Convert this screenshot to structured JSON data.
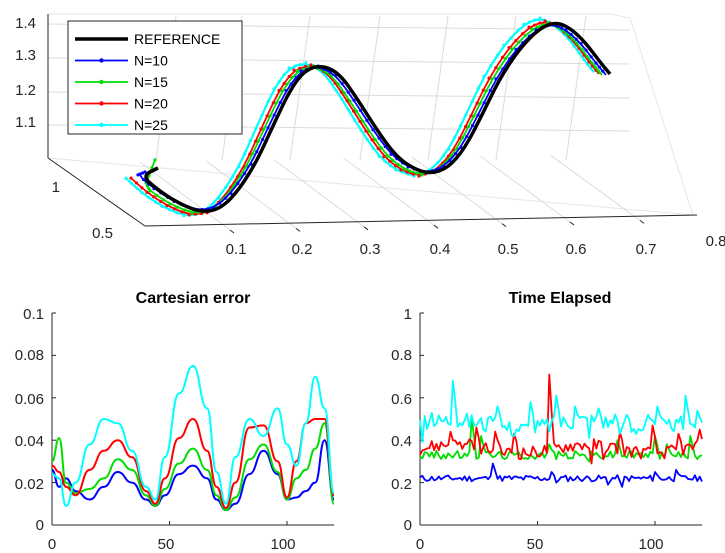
{
  "chart_data": [
    {
      "type": "line",
      "subtype": "3d",
      "title": "",
      "x_ticks": [
        "0.1",
        "0.2",
        "0.3",
        "0.4",
        "0.5",
        "0.6",
        "0.7",
        "0.8"
      ],
      "y_ticks": [
        "0.5",
        "1"
      ],
      "z_ticks": [
        "1.1",
        "1.2",
        "1.3",
        "1.4"
      ],
      "xlim": [
        0.05,
        0.8
      ],
      "ylim": [
        0.4,
        1.2
      ],
      "zlim": [
        1.05,
        1.4
      ],
      "grid": true,
      "legend_position": "top-left",
      "legend": [
        "REFERENCE",
        "N=10",
        "N=15",
        "N=20",
        "N=25"
      ],
      "series": [
        {
          "name": "REFERENCE",
          "color": "#000000",
          "x": [
            0.0,
            0.05,
            0.1,
            0.15,
            0.2,
            0.25,
            0.3,
            0.35,
            0.4,
            0.45,
            0.5,
            0.55,
            0.6,
            0.65,
            0.7,
            0.75,
            0.8
          ],
          "z": [
            1.1,
            1.09,
            1.18,
            1.32,
            1.41,
            1.38,
            1.26,
            1.17,
            1.15,
            1.22,
            1.36,
            1.46,
            1.4,
            1.3,
            1.18,
            1.12,
            1.15
          ]
        },
        {
          "name": "N=10",
          "color": "#0000ff"
        },
        {
          "name": "N=15",
          "color": "#00dd00"
        },
        {
          "name": "N=20",
          "color": "#ff0000"
        },
        {
          "name": "N=25",
          "color": "#00ffff"
        }
      ]
    },
    {
      "type": "line",
      "title": "Cartesian error",
      "xlim": [
        0,
        120
      ],
      "ylim": [
        0,
        0.1
      ],
      "x_ticks": [
        "0",
        "50",
        "100"
      ],
      "y_ticks": [
        "0",
        "0.02",
        "0.04",
        "0.06",
        "0.08",
        "0.1"
      ],
      "x": [
        0,
        3,
        6,
        10,
        16,
        22,
        28,
        34,
        40,
        44,
        48,
        54,
        60,
        66,
        70,
        74,
        78,
        84,
        90,
        96,
        100,
        104,
        108,
        112,
        116,
        120
      ],
      "series": [
        {
          "name": "N=10",
          "color": "#0000ff",
          "values": [
            0.026,
            0.018,
            0.022,
            0.016,
            0.012,
            0.018,
            0.025,
            0.02,
            0.012,
            0.009,
            0.014,
            0.024,
            0.028,
            0.022,
            0.012,
            0.007,
            0.01,
            0.024,
            0.035,
            0.024,
            0.012,
            0.013,
            0.016,
            0.02,
            0.04,
            0.012
          ]
        },
        {
          "name": "N=15",
          "color": "#00dd00",
          "values": [
            0.03,
            0.041,
            0.02,
            0.015,
            0.017,
            0.022,
            0.031,
            0.026,
            0.014,
            0.009,
            0.017,
            0.029,
            0.036,
            0.026,
            0.014,
            0.007,
            0.013,
            0.031,
            0.038,
            0.025,
            0.012,
            0.022,
            0.026,
            0.036,
            0.048,
            0.01
          ]
        },
        {
          "name": "N=20",
          "color": "#ff0000",
          "values": [
            0.028,
            0.025,
            0.018,
            0.014,
            0.026,
            0.035,
            0.04,
            0.032,
            0.016,
            0.01,
            0.022,
            0.041,
            0.05,
            0.035,
            0.018,
            0.008,
            0.02,
            0.046,
            0.047,
            0.03,
            0.013,
            0.03,
            0.048,
            0.05,
            0.05,
            0.014
          ]
        },
        {
          "name": "N=25",
          "color": "#00ffff",
          "values": [
            0.024,
            0.022,
            0.009,
            0.02,
            0.038,
            0.05,
            0.048,
            0.035,
            0.018,
            0.012,
            0.032,
            0.062,
            0.075,
            0.055,
            0.025,
            0.01,
            0.032,
            0.05,
            0.042,
            0.055,
            0.038,
            0.028,
            0.048,
            0.07,
            0.055,
            0.015
          ]
        }
      ]
    },
    {
      "type": "line",
      "title": "Time Elapsed",
      "xlim": [
        0,
        120
      ],
      "ylim": [
        0,
        1
      ],
      "x_ticks": [
        "0",
        "50",
        "100"
      ],
      "y_ticks": [
        "0",
        "0.2",
        "0.4",
        "0.6",
        "0.8",
        "1"
      ],
      "series": [
        {
          "name": "N=10",
          "color": "#0000ff",
          "base": 0.22,
          "noise": 0.015,
          "spikes": [
            [
              31,
              0.29
            ],
            [
              56,
              0.25
            ],
            [
              100,
              0.25
            ],
            [
              109,
              0.26
            ]
          ],
          "dips": [
            [
              58,
              0.2
            ],
            [
              80,
              0.19
            ],
            [
              86,
              0.18
            ]
          ]
        },
        {
          "name": "N=15",
          "color": "#00dd00",
          "base": 0.33,
          "noise": 0.02,
          "spikes": [
            [
              22,
              0.5
            ],
            [
              26,
              0.42
            ],
            [
              55,
              0.38
            ],
            [
              84,
              0.4
            ],
            [
              100,
              0.42
            ],
            [
              105,
              0.38
            ],
            [
              115,
              0.42
            ]
          ],
          "dips": [
            [
              72,
              0.3
            ]
          ]
        },
        {
          "name": "N=20",
          "color": "#ff0000",
          "base": 0.36,
          "noise": 0.03,
          "spikes": [
            [
              13,
              0.44
            ],
            [
              24,
              0.46
            ],
            [
              32,
              0.44
            ],
            [
              40,
              0.43
            ],
            [
              55,
              0.71
            ],
            [
              85,
              0.44
            ],
            [
              99,
              0.47
            ],
            [
              110,
              0.43
            ],
            [
              119,
              0.45
            ]
          ],
          "dips": [
            [
              73,
              0.29
            ],
            [
              78,
              0.31
            ]
          ]
        },
        {
          "name": "N=25",
          "color": "#00ffff",
          "base": 0.48,
          "noise": 0.04,
          "spikes": [
            [
              14,
              0.68
            ],
            [
              33,
              0.56
            ],
            [
              47,
              0.58
            ],
            [
              58,
              0.61
            ],
            [
              66,
              0.56
            ],
            [
              76,
              0.55
            ],
            [
              88,
              0.52
            ],
            [
              97,
              0.52
            ],
            [
              101,
              0.56
            ],
            [
              113,
              0.61
            ],
            [
              118,
              0.54
            ]
          ],
          "dips": [
            [
              1,
              0.39
            ],
            [
              40,
              0.42
            ],
            [
              72,
              0.41
            ],
            [
              85,
              0.43
            ]
          ]
        }
      ]
    }
  ]
}
